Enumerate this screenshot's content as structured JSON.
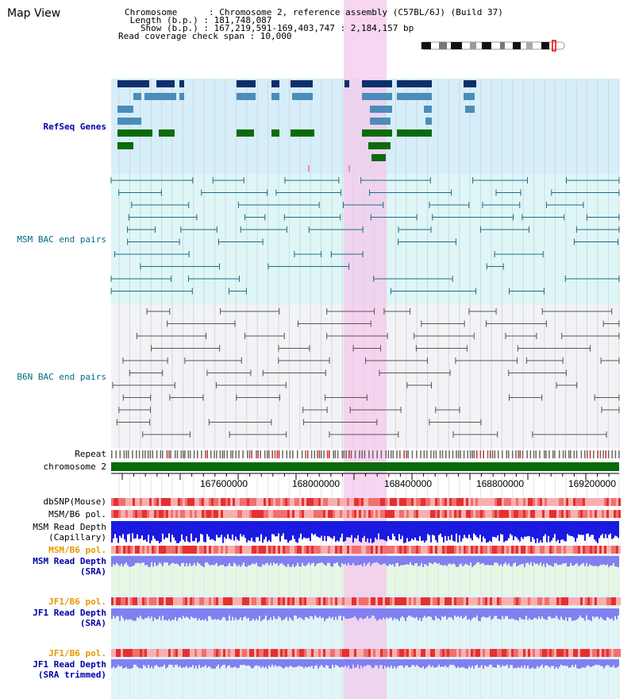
{
  "page": {
    "title": "Map View"
  },
  "header": {
    "chromosome": "Chromosome      : Chromosome 2, reference assembly (C57BL/6J) (Build 37)",
    "length": " Length (b.p.) : 181,748,087",
    "show": "   Show (b.p.) : 167,219,591-169,403,747 : 2,184,157 bp",
    "coverage": "Read coverage check span : 10,000"
  },
  "tracks": {
    "refseq": "RefSeq Genes",
    "msm_bac": "MSM BAC end pairs",
    "b6n_bac": "B6N BAC end pairs",
    "repeat": "Repeat",
    "chromosome": "chromosome 2",
    "dbsnp": "dbSNP(Mouse)",
    "msm_pol1": "MSM/B6 pol.",
    "msm_depth_cap_1": "MSM Read Depth",
    "msm_depth_cap_2": "(Capillary)",
    "msm_pol2": "MSM/B6 pol.",
    "msm_depth_sra_1": "MSM Read Depth",
    "msm_depth_sra_2": "(SRA)",
    "jf1_pol1": "JF1/B6 pol.",
    "jf1_depth_sra_1": "JF1 Read Depth",
    "jf1_depth_sra_2": "(SRA)",
    "jf1_pol2": "JF1/B6 pol.",
    "jf1_depth_trim_1": "JF1 Read Depth",
    "jf1_depth_trim_2": "(SRA trimmed)"
  },
  "axis": {
    "ticks": [
      "167600000",
      "168000000",
      "168400000",
      "168800000",
      "169200000"
    ]
  },
  "colors": {
    "refseq_dark": "#0d2f6b",
    "refseq_mid": "#4a8db8",
    "refseq_green": "#0a6b0a",
    "msm_line": "#1a6e8a",
    "b6n_line": "#555555",
    "highlight": "#f4c8ec",
    "blue_label": "#0000aa",
    "orange_label": "#e69900",
    "teal_label": "#006e82"
  }
}
